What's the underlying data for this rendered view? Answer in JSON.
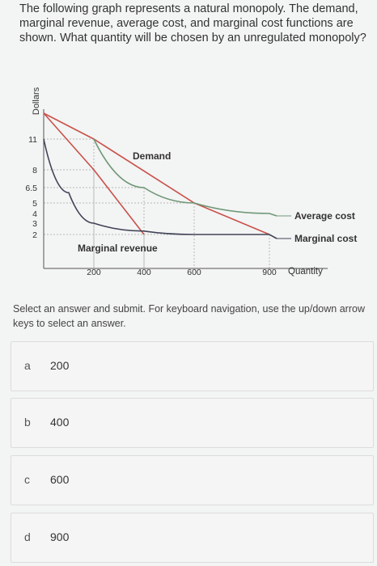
{
  "question": "The following graph represents a natural monopoly. The demand, marginal revenue, average cost, and marginal cost functions are shown. What quantity will be chosen by an unregulated monopoly?",
  "instructions": "Select an answer and submit. For keyboard navigation, use the up/down arrow keys to select an answer.",
  "options": [
    {
      "letter": "a",
      "value": "200"
    },
    {
      "letter": "b",
      "value": "400"
    },
    {
      "letter": "c",
      "value": "600"
    },
    {
      "letter": "d",
      "value": "900"
    }
  ],
  "chart_data": {
    "type": "line",
    "ylabel": "Dollars",
    "xlabel": "Quantity",
    "y_ticks": [
      "11",
      "8",
      "6.5",
      "5",
      "4",
      "3",
      "2"
    ],
    "x_ticks": [
      "200",
      "400",
      "600",
      "900"
    ],
    "xlim": [
      0,
      900
    ],
    "ylim": [
      0,
      13
    ],
    "series": [
      {
        "name": "Demand",
        "color": "#c9514a",
        "points": [
          [
            0,
            13
          ],
          [
            200,
            11
          ],
          [
            600,
            5
          ],
          [
            900,
            2
          ]
        ]
      },
      {
        "name": "Marginal revenue",
        "color": "#c9514a",
        "points": [
          [
            0,
            13
          ],
          [
            200,
            8
          ],
          [
            400,
            2
          ]
        ]
      },
      {
        "name": "Average cost",
        "color": "#6f9777",
        "points": [
          [
            200,
            11
          ],
          [
            400,
            6.5
          ],
          [
            600,
            5
          ],
          [
            900,
            4
          ]
        ]
      },
      {
        "name": "Marginal cost",
        "color": "#404457",
        "points": [
          [
            0,
            11
          ],
          [
            100,
            6
          ],
          [
            200,
            3
          ],
          [
            400,
            2.3
          ],
          [
            600,
            2
          ],
          [
            900,
            2
          ]
        ]
      }
    ],
    "guides": [
      {
        "x": 200,
        "y": 11
      },
      {
        "x": 200,
        "y": 8
      },
      {
        "x": 400,
        "y": 6.5
      },
      {
        "x": 400,
        "y": 2
      },
      {
        "x": 600,
        "y": 5
      },
      {
        "x": 900,
        "y": 2
      }
    ],
    "labels": {
      "demand": "Demand",
      "marginal_revenue": "Marginal revenue",
      "average_cost": "Average cost",
      "marginal_cost": "Marginal cost"
    }
  }
}
